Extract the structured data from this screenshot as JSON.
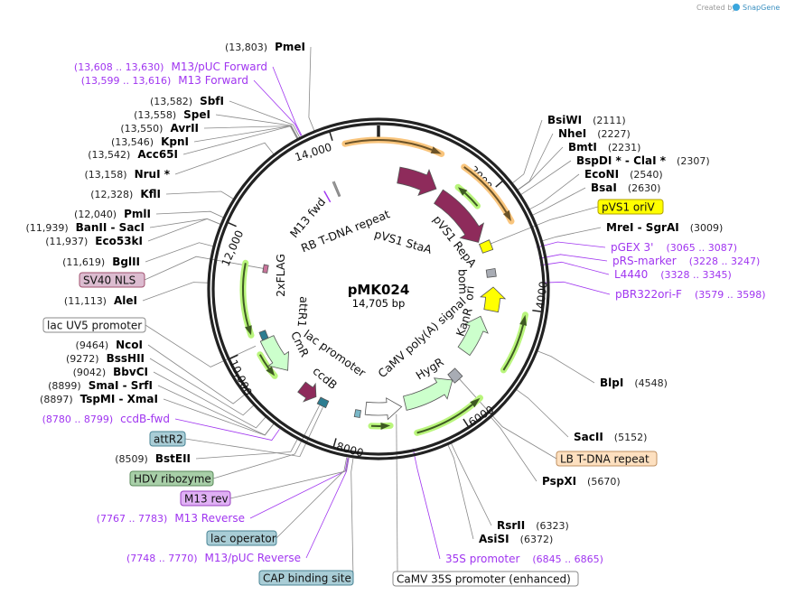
{
  "watermark": {
    "prefix": "Created by",
    "brand": "SnapGene"
  },
  "plasmid": {
    "name": "pMK024",
    "length_label": "14,705 bp",
    "length_bp": 14705
  },
  "colors": {
    "backbone": "#222222",
    "primer": "#a035f0",
    "maroon": "#8e2b5b",
    "orange_highlight": "#f9c57d",
    "green_highlight": "#b9f57c",
    "light_green": "#ccffcc",
    "yellow": "#ffff00",
    "gray": "#a8acb4",
    "teal": "#2d7d91",
    "pink": "#c9749b"
  },
  "ticks": [
    {
      "bp": 2000,
      "label": "2000"
    },
    {
      "bp": 4000,
      "label": "4000"
    },
    {
      "bp": 6000,
      "label": "6000"
    },
    {
      "bp": 8000,
      "label": "8000"
    },
    {
      "bp": 10000,
      "label": "10,000"
    },
    {
      "bp": 12000,
      "label": "12,000"
    },
    {
      "bp": 14000,
      "label": "14,000"
    }
  ],
  "enzymes": [
    {
      "name": "PmeI",
      "pos": "(13,803)",
      "bp": 13803,
      "side": "left"
    },
    {
      "name": "SbfI",
      "pos": "(13,582)",
      "bp": 13582,
      "side": "left"
    },
    {
      "name": "SpeI",
      "pos": "(13,558)",
      "bp": 13558,
      "side": "left"
    },
    {
      "name": "AvrII",
      "pos": "(13,550)",
      "bp": 13550,
      "side": "left"
    },
    {
      "name": "KpnI",
      "pos": "(13,546)",
      "bp": 13546,
      "side": "left"
    },
    {
      "name": "Acc65I",
      "pos": "(13,542)",
      "bp": 13542,
      "side": "left"
    },
    {
      "name": "NruI *",
      "pos": "(13,158)",
      "bp": 13158,
      "side": "left"
    },
    {
      "name": "KflI",
      "pos": "(12,328)",
      "bp": 12328,
      "side": "left"
    },
    {
      "name": "PmlI",
      "pos": "(12,040)",
      "bp": 12040,
      "side": "left"
    },
    {
      "name": "BanII  - SacI",
      "pos": "(11,939)",
      "bp": 11939,
      "side": "left"
    },
    {
      "name": "Eco53kI",
      "pos": "(11,937)",
      "bp": 11937,
      "side": "left"
    },
    {
      "name": "BglII",
      "pos": "(11,619)",
      "bp": 11619,
      "side": "left"
    },
    {
      "name": "AleI",
      "pos": "(11,113)",
      "bp": 11113,
      "side": "left"
    },
    {
      "name": "NcoI",
      "pos": "(9464)",
      "bp": 9464,
      "side": "left"
    },
    {
      "name": "BssHII",
      "pos": "(9272)",
      "bp": 9272,
      "side": "left"
    },
    {
      "name": "BbvCI",
      "pos": "(9042)",
      "bp": 9042,
      "side": "left"
    },
    {
      "name": "SmaI  - SrfI",
      "pos": "(8899)",
      "bp": 8899,
      "side": "left"
    },
    {
      "name": "TspMI  - XmaI",
      "pos": "(8897)",
      "bp": 8897,
      "side": "left"
    },
    {
      "name": "BstEII",
      "pos": "(8509)",
      "bp": 8509,
      "side": "left"
    },
    {
      "name": "BsiWI",
      "pos": "(2111)",
      "bp": 2111,
      "side": "right"
    },
    {
      "name": "NheI",
      "pos": "(2227)",
      "bp": 2227,
      "side": "right"
    },
    {
      "name": "BmtI",
      "pos": "(2231)",
      "bp": 2231,
      "side": "right"
    },
    {
      "name": "BspDI *  - ClaI *",
      "pos": "(2307)",
      "bp": 2307,
      "side": "right"
    },
    {
      "name": "EcoNI",
      "pos": "(2540)",
      "bp": 2540,
      "side": "right"
    },
    {
      "name": "BsaI",
      "pos": "(2630)",
      "bp": 2630,
      "side": "right"
    },
    {
      "name": "MreI  - SgrAI",
      "pos": "(3009)",
      "bp": 3009,
      "side": "right"
    },
    {
      "name": "BlpI",
      "pos": "(4548)",
      "bp": 4548,
      "side": "right"
    },
    {
      "name": "SacII",
      "pos": "(5152)",
      "bp": 5152,
      "side": "right"
    },
    {
      "name": "PspXI",
      "pos": "(5670)",
      "bp": 5670,
      "side": "right"
    },
    {
      "name": "RsrII",
      "pos": "(6323)",
      "bp": 6323,
      "side": "right"
    },
    {
      "name": "AsiSI",
      "pos": "(6372)",
      "bp": 6372,
      "side": "right"
    }
  ],
  "primers": [
    {
      "name": "M13/pUC Forward",
      "range": "(13,608 .. 13,630)",
      "bp": 13619,
      "side": "left"
    },
    {
      "name": "M13 Forward",
      "range": "(13,599 .. 13,616)",
      "bp": 13607,
      "side": "left"
    },
    {
      "name": "ccdB-fwd",
      "range": "(8780 .. 8799)",
      "bp": 8790,
      "side": "left"
    },
    {
      "name": "M13 Reverse",
      "range": "(7767 .. 7783)",
      "bp": 7775,
      "side": "left"
    },
    {
      "name": "M13/pUC Reverse",
      "range": "(7748 .. 7770)",
      "bp": 7759,
      "side": "left"
    },
    {
      "name": "pGEX 3'",
      "range": "(3065 .. 3087)",
      "bp": 3076,
      "side": "right"
    },
    {
      "name": "pRS-marker",
      "range": "(3228 .. 3247)",
      "bp": 3238,
      "side": "right"
    },
    {
      "name": "L4440",
      "range": "(3328 .. 3345)",
      "bp": 3336,
      "side": "right"
    },
    {
      "name": "pBR322ori-F",
      "range": "(3579 .. 3598)",
      "bp": 3588,
      "side": "right"
    },
    {
      "name": "35S promoter",
      "range": "(6845 .. 6865)",
      "bp": 6855,
      "side": "right"
    }
  ],
  "feature_labels": [
    {
      "name": "SV40 NLS",
      "bp": 11440,
      "fill": "#dcbcd0",
      "stroke": "#a0506e"
    },
    {
      "name": "lac UV5 promoter",
      "bp": 10010,
      "fill": "#ffffff",
      "stroke": "#888888"
    },
    {
      "name": "attR2",
      "bp": 8380,
      "fill": "#a9cdd6",
      "stroke": "#4a8596"
    },
    {
      "name": "HDV ribozyme",
      "bp": 8450,
      "fill": "#a8cfa8",
      "stroke": "#5a8a5a"
    },
    {
      "name": "M13 rev",
      "bp": 7765,
      "fill": "#e0b0f5",
      "stroke": "#9a40c0"
    },
    {
      "name": "lac operator",
      "bp": 7790,
      "fill": "#a9cdd6",
      "stroke": "#4a8596"
    },
    {
      "name": "CAP binding site",
      "bp": 7700,
      "fill": "#a9cdd6",
      "stroke": "#4a8596"
    },
    {
      "name": "pVS1 oriV",
      "bp": 2780,
      "fill": "#ffff00",
      "stroke": "#b0a000"
    },
    {
      "name": "LB T-DNA repeat",
      "bp": 5640,
      "fill": "#fde0c0",
      "stroke": "#c09060"
    },
    {
      "name": "CaMV 35S promoter (enhanced)",
      "bp": 7020,
      "fill": "#ffffff",
      "stroke": "#888888"
    }
  ],
  "features": [
    {
      "name": "pVS1 StaA",
      "start": 410,
      "end": 1225,
      "kind": "arrow",
      "dir": "cw",
      "fill": "#8e2b5b"
    },
    {
      "name": "pVS1 RepA",
      "start": 1350,
      "end": 2655,
      "kind": "arrow",
      "dir": "cw",
      "fill": "#8e2b5b"
    },
    {
      "name": "pVS1 oriV",
      "start": 2700,
      "end": 2900,
      "kind": "box",
      "fill": "#ffff00"
    },
    {
      "name": "bom",
      "start": 3270,
      "end": 3430,
      "kind": "box",
      "fill": "#a8acb4"
    },
    {
      "name": "ori",
      "start": 3640,
      "end": 4125,
      "kind": "arrow",
      "dir": "ccw",
      "fill": "#ffff00"
    },
    {
      "name": "KanR",
      "start": 4290,
      "end": 5150,
      "kind": "arrow",
      "dir": "ccw",
      "fill": "#ccffcc"
    },
    {
      "name": "CaMV poly(A) signal",
      "start": 5560,
      "end": 5760,
      "kind": "box",
      "fill": "#a8acb4"
    },
    {
      "name": "HygR",
      "start": 5760,
      "end": 6820,
      "kind": "arrow",
      "dir": "ccw",
      "fill": "#ccffcc"
    },
    {
      "name": "CaMV 35S promoter (enhanced)",
      "start": 6900,
      "end": 7600,
      "kind": "arrow",
      "dir": "ccw",
      "fill": "#ffffff"
    },
    {
      "name": "lac promoter",
      "start": 7690,
      "end": 7790,
      "kind": "box",
      "fill": "#7ab8c8"
    },
    {
      "name": "ccdB",
      "start": 8330,
      "end": 8500,
      "kind": "box",
      "fill": "#2d7d91"
    },
    {
      "name": "ccdB-arrow",
      "start": 8580,
      "end": 8905,
      "kind": "arrow",
      "dir": "ccw",
      "fill": "#8e2b5b"
    },
    {
      "name": "CmR",
      "start": 9315,
      "end": 10050,
      "kind": "arrow",
      "dir": "ccw",
      "fill": "#ccffcc"
    },
    {
      "name": "attR1",
      "start": 10050,
      "end": 10210,
      "kind": "box",
      "fill": "#2d7d91"
    },
    {
      "name": "2xFLAG",
      "start": 11360,
      "end": 11520,
      "kind": "box",
      "fill": "#c9749b"
    },
    {
      "name": "M13 fwd",
      "start": 13520,
      "end": 13530,
      "kind": "line",
      "fill": "#a035f0"
    },
    {
      "name": "RB T-DNA repeat",
      "start": 13760,
      "end": 13790,
      "kind": "line",
      "fill": "#888888"
    }
  ],
  "orfs": [
    {
      "start": 14174,
      "end": 1021,
      "dir": "cw",
      "type": "orange"
    },
    {
      "start": 1430,
      "end": 2573,
      "dir": "cw",
      "type": "orange"
    },
    {
      "start": 1552,
      "end": 2042,
      "dir": "ccw",
      "type": "green"
    },
    {
      "start": 4085,
      "end": 5024,
      "dir": "ccw",
      "type": "green"
    },
    {
      "start": 5596,
      "end": 6740,
      "dir": "ccw",
      "type": "green"
    },
    {
      "start": 7150,
      "end": 7475,
      "dir": "ccw",
      "type": "green"
    },
    {
      "start": 9395,
      "end": 9845,
      "dir": "ccw",
      "type": "green"
    },
    {
      "start": 10212,
      "end": 11479,
      "dir": "ccw",
      "type": "green"
    }
  ]
}
